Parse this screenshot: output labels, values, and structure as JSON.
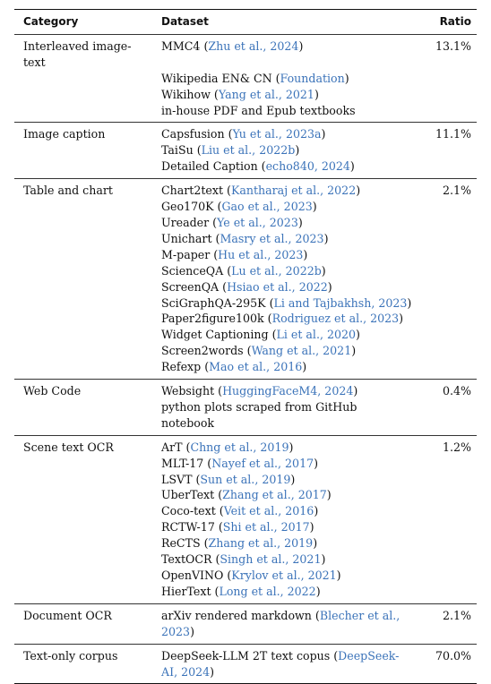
{
  "headers": {
    "category": "Category",
    "dataset": "Dataset",
    "ratio": "Ratio"
  },
  "groups": [
    {
      "category": "Interleaved image-text",
      "ratio": "13.1%",
      "datasets": [
        {
          "name": "MMC4 (",
          "cite": "Zhu et al., 2024",
          "close": ")"
        },
        {
          "name": "Wikipedia EN& CN (",
          "cite": "Foundation",
          "close": ")"
        },
        {
          "name": "Wikihow (",
          "cite": "Yang et al., 2021",
          "close": ")"
        },
        {
          "name": "in-house PDF and Epub textbooks",
          "cite": "",
          "close": ""
        }
      ]
    },
    {
      "category": "Image caption",
      "ratio": "11.1%",
      "datasets": [
        {
          "name": "Capsfusion (",
          "cite": "Yu et al., 2023a",
          "close": ")"
        },
        {
          "name": "TaiSu (",
          "cite": "Liu et al., 2022b",
          "close": ")"
        },
        {
          "name": "Detailed Caption (",
          "cite": "echo840, 2024",
          "close": ")"
        }
      ]
    },
    {
      "category": "Table and chart",
      "ratio": "2.1%",
      "datasets": [
        {
          "name": "Chart2text (",
          "cite": "Kantharaj et al., 2022",
          "close": ")"
        },
        {
          "name": "Geo170K (",
          "cite": "Gao et al., 2023",
          "close": ")"
        },
        {
          "name": "Ureader (",
          "cite": "Ye et al., 2023",
          "close": ")"
        },
        {
          "name": "Unichart (",
          "cite": "Masry et al., 2023",
          "close": ")"
        },
        {
          "name": "M-paper (",
          "cite": "Hu et al., 2023",
          "close": ")"
        },
        {
          "name": "ScienceQA (",
          "cite": "Lu et al., 2022b",
          "close": ")"
        },
        {
          "name": "ScreenQA (",
          "cite": "Hsiao et al., 2022",
          "close": ")"
        },
        {
          "name": "SciGraphQA-295K (",
          "cite": "Li and Tajbakhsh, 2023",
          "close": ")"
        },
        {
          "name": "Paper2figure100k (",
          "cite": "Rodriguez et al., 2023",
          "close": ")"
        },
        {
          "name": "Widget Captioning (",
          "cite": "Li et al., 2020",
          "close": ")"
        },
        {
          "name": "Screen2words (",
          "cite": "Wang et al., 2021",
          "close": ")"
        },
        {
          "name": "Refexp (",
          "cite": "Mao et al., 2016",
          "close": ")"
        }
      ]
    },
    {
      "category": "Web Code",
      "ratio": "0.4%",
      "datasets": [
        {
          "name": "Websight (",
          "cite": "HuggingFaceM4, 2024",
          "close": ")"
        },
        {
          "name": "python plots scraped from GitHub notebook",
          "cite": "",
          "close": ""
        }
      ]
    },
    {
      "category": "Scene text OCR",
      "ratio": "1.2%",
      "datasets": [
        {
          "name": "ArT (",
          "cite": "Chng et al., 2019",
          "close": ")"
        },
        {
          "name": "MLT-17 (",
          "cite": "Nayef et al., 2017",
          "close": ")"
        },
        {
          "name": "LSVT (",
          "cite": "Sun et al., 2019",
          "close": ")"
        },
        {
          "name": "UberText (",
          "cite": "Zhang et al., 2017",
          "close": ")"
        },
        {
          "name": "Coco-text (",
          "cite": "Veit et al., 2016",
          "close": ")"
        },
        {
          "name": "RCTW-17 (",
          "cite": "Shi et al., 2017",
          "close": ")"
        },
        {
          "name": "ReCTS (",
          "cite": "Zhang et al., 2019",
          "close": ")"
        },
        {
          "name": "TextOCR (",
          "cite": "Singh et al., 2021",
          "close": ")"
        },
        {
          "name": "OpenVINO (",
          "cite": "Krylov et al., 2021",
          "close": ")"
        },
        {
          "name": "HierText (",
          "cite": "Long et al., 2022",
          "close": ")"
        }
      ]
    },
    {
      "category": "Document OCR",
      "ratio": "2.1%",
      "datasets": [
        {
          "name": "arXiv rendered markdown (",
          "cite": "Blecher et al., 2023",
          "close": ")"
        }
      ]
    },
    {
      "category": "Text-only corpus",
      "ratio": "70.0%",
      "datasets": [
        {
          "name": "DeepSeek-LLM 2T text copus (",
          "cite": "DeepSeek-AI, 2024",
          "close": ")"
        }
      ]
    }
  ]
}
